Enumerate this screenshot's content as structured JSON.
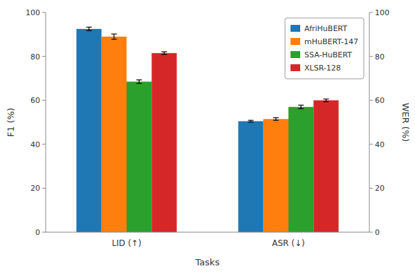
{
  "chart_data": {
    "type": "bar",
    "categories": [
      "LID (↑)",
      "ASR (↓)"
    ],
    "series": [
      {
        "name": "AfriHuBERT",
        "color": "#1f77b4",
        "values": [
          92.5,
          50.5
        ],
        "errors": [
          0.8,
          0.4
        ]
      },
      {
        "name": "mHuBERT-147",
        "color": "#ff7f0e",
        "values": [
          89.0,
          51.5
        ],
        "errors": [
          1.2,
          0.6
        ]
      },
      {
        "name": "SSA-HuBERT",
        "color": "#2ca02c",
        "values": [
          68.5,
          57.0
        ],
        "errors": [
          0.8,
          0.8
        ]
      },
      {
        "name": "XLSR-128",
        "color": "#d62728",
        "values": [
          81.5,
          60.0
        ],
        "errors": [
          0.6,
          0.6
        ]
      }
    ],
    "xlabel": "Tasks",
    "ylabel": "F1 (%)",
    "y2label": "WER (%)",
    "ylim": [
      0,
      100
    ],
    "yticks": [
      0,
      20,
      40,
      60,
      80,
      100
    ],
    "y2lim": [
      0,
      100
    ],
    "y2ticks": [
      0,
      20,
      40,
      60,
      80,
      100
    ],
    "grid": false,
    "legend": "upper right"
  }
}
